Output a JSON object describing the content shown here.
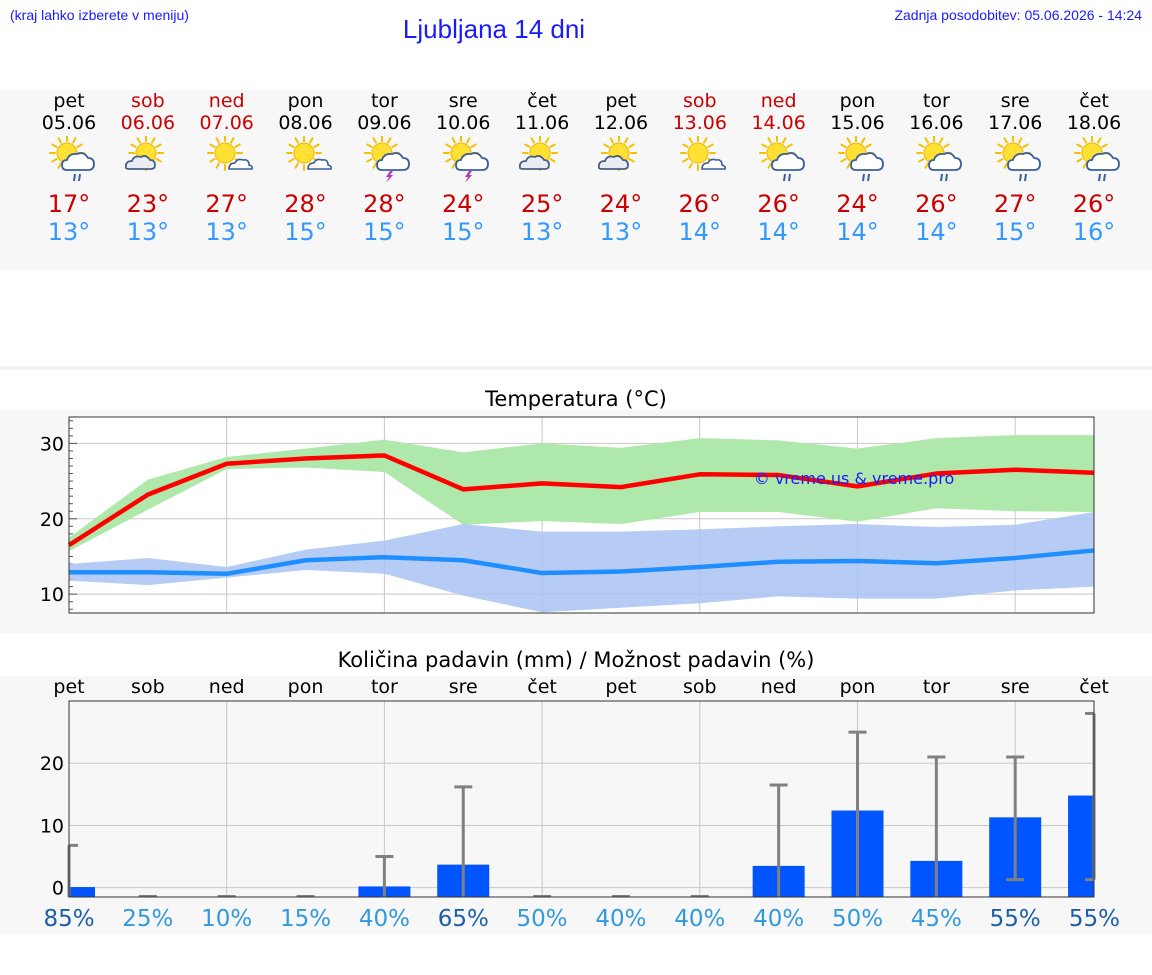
{
  "header": {
    "left_note": "(kraj lahko izberete v meniju)",
    "title": "Ljubljana 14 dni",
    "updated": "Zadnja posodobitev: 05.06.2026 - 14:24"
  },
  "days": [
    {
      "name": "pet",
      "date": "05.06",
      "weekend": false,
      "icon": "sun-cloud-rain-icon",
      "tmax": "17°",
      "tmin": "13°"
    },
    {
      "name": "sob",
      "date": "06.06",
      "weekend": true,
      "icon": "sun-cloud-icon",
      "tmax": "23°",
      "tmin": "13°"
    },
    {
      "name": "ned",
      "date": "07.06",
      "weekend": true,
      "icon": "sun-small-cloud-icon",
      "tmax": "27°",
      "tmin": "13°"
    },
    {
      "name": "pon",
      "date": "08.06",
      "weekend": false,
      "icon": "sun-small-cloud-icon",
      "tmax": "28°",
      "tmin": "15°"
    },
    {
      "name": "tor",
      "date": "09.06",
      "weekend": false,
      "icon": "sun-cloud-thunder-icon",
      "tmax": "28°",
      "tmin": "15°"
    },
    {
      "name": "sre",
      "date": "10.06",
      "weekend": false,
      "icon": "sun-cloud-thunder-icon",
      "tmax": "24°",
      "tmin": "15°"
    },
    {
      "name": "čet",
      "date": "11.06",
      "weekend": false,
      "icon": "sun-cloud-icon",
      "tmax": "25°",
      "tmin": "13°"
    },
    {
      "name": "pet",
      "date": "12.06",
      "weekend": false,
      "icon": "sun-cloud-icon",
      "tmax": "24°",
      "tmin": "13°"
    },
    {
      "name": "sob",
      "date": "13.06",
      "weekend": true,
      "icon": "sun-small-cloud-icon",
      "tmax": "26°",
      "tmin": "14°"
    },
    {
      "name": "ned",
      "date": "14.06",
      "weekend": true,
      "icon": "sun-cloud-rain-icon",
      "tmax": "26°",
      "tmin": "14°"
    },
    {
      "name": "pon",
      "date": "15.06",
      "weekend": false,
      "icon": "sun-cloud-rain-icon",
      "tmax": "24°",
      "tmin": "14°"
    },
    {
      "name": "tor",
      "date": "16.06",
      "weekend": false,
      "icon": "sun-cloud-rain-icon",
      "tmax": "26°",
      "tmin": "14°"
    },
    {
      "name": "sre",
      "date": "17.06",
      "weekend": false,
      "icon": "sun-cloud-rain-icon",
      "tmax": "27°",
      "tmin": "15°"
    },
    {
      "name": "čet",
      "date": "18.06",
      "weekend": false,
      "icon": "sun-cloud-rain-icon",
      "tmax": "26°",
      "tmin": "16°"
    }
  ],
  "colors": {
    "max_line": "#ff0000",
    "min_line": "#1f8fff",
    "max_band": "#aee8aa",
    "min_band": "#a9c3f2",
    "precip_bar": "#0055ff",
    "error_bar": "#808080",
    "link_blue": "#1a1aff"
  },
  "chart_data": [
    {
      "type": "line",
      "title": "Temperatura (°C)",
      "watermark": "© vreme.us & vreme.pro",
      "ylim": [
        7.5,
        33.5
      ],
      "yticks": [
        10,
        20,
        30
      ],
      "grid": true,
      "x": [
        "05.06",
        "06.06",
        "07.06",
        "08.06",
        "09.06",
        "10.06",
        "11.06",
        "12.06",
        "13.06",
        "14.06",
        "15.06",
        "16.06",
        "17.06",
        "18.06"
      ],
      "series": [
        {
          "values": [
            16.5,
            23.2,
            27.3,
            28.0,
            28.4,
            23.9,
            24.7,
            24.2,
            25.9,
            25.8,
            24.3,
            26.0,
            26.5,
            26.1
          ],
          "band_low": [
            15.7,
            21.2,
            26.6,
            26.8,
            26.2,
            19.2,
            19.7,
            19.3,
            20.9,
            20.9,
            19.6,
            21.4,
            21.0,
            20.9
          ],
          "band_high": [
            17.5,
            25.2,
            28.2,
            29.3,
            30.5,
            28.8,
            30.0,
            29.4,
            30.7,
            30.4,
            29.3,
            30.7,
            31.1,
            31.1
          ]
        },
        {
          "values": [
            12.9,
            12.9,
            12.7,
            14.5,
            14.9,
            14.5,
            12.8,
            13.0,
            13.6,
            14.3,
            14.4,
            14.1,
            14.8,
            15.8
          ],
          "band_low": [
            11.8,
            11.2,
            12.2,
            13.2,
            12.7,
            9.8,
            7.6,
            8.2,
            8.8,
            9.7,
            9.4,
            9.4,
            10.5,
            11.0
          ],
          "band_high": [
            14.0,
            14.8,
            13.6,
            15.9,
            17.1,
            19.3,
            18.3,
            18.3,
            18.6,
            19.0,
            19.3,
            18.9,
            19.2,
            20.9
          ]
        }
      ]
    },
    {
      "type": "bar",
      "title": "Količina padavin (mm) / Možnost padavin (%)",
      "categories": [
        "pet",
        "sob",
        "ned",
        "pon",
        "tor",
        "sre",
        "čet",
        "pet",
        "sob",
        "ned",
        "pon",
        "tor",
        "sre",
        "čet"
      ],
      "ylim": [
        -1.5,
        30
      ],
      "yticks": [
        0,
        10,
        20
      ],
      "grid": true,
      "values": [
        0.1,
        0,
        0,
        0,
        0.2,
        3.7,
        0,
        0,
        0,
        3.5,
        12.4,
        4.3,
        11.3,
        14.8
      ],
      "error_low": [
        0,
        0,
        0,
        0,
        0,
        0,
        0,
        0,
        0,
        0,
        0,
        0,
        1.3,
        1.3
      ],
      "error_high": [
        6.8,
        0,
        0,
        0,
        5.0,
        16.2,
        0,
        0,
        0,
        16.5,
        25.0,
        21.0,
        21.0,
        28.0
      ],
      "probabilities": [
        "85%",
        "25%",
        "10%",
        "15%",
        "40%",
        "65%",
        "50%",
        "40%",
        "40%",
        "40%",
        "50%",
        "45%",
        "55%",
        "55%"
      ],
      "probability_values": [
        85,
        25,
        10,
        15,
        40,
        65,
        50,
        40,
        40,
        40,
        50,
        45,
        55,
        55
      ]
    }
  ]
}
